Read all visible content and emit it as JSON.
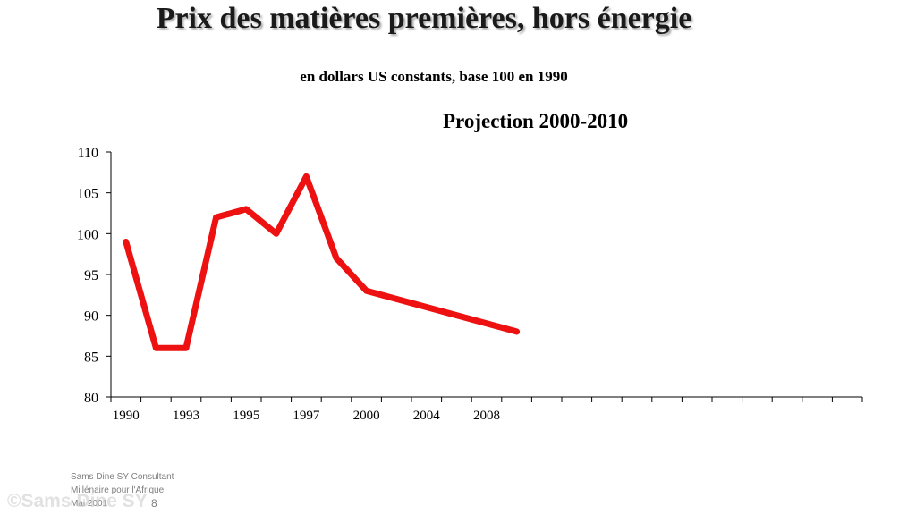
{
  "slide": {
    "title": "Prix des matières premières, hors énergie",
    "subtitle": "en dollars US constants, base 100 en 1990",
    "projection_label": "Projection 2000-2010",
    "footer_lines": [
      "Sams Dine SY Consultant",
      "Millénaire pour  l'Afrique",
      "Mai 2001"
    ],
    "page_number": "8",
    "watermark": "©Sams Dine SY"
  },
  "chart_data": {
    "type": "line",
    "title": "",
    "xlabel": "",
    "ylabel": "",
    "ylim": [
      80,
      110
    ],
    "yticks": [
      80,
      85,
      90,
      95,
      100,
      105,
      110
    ],
    "x_tick_labels": [
      "1990",
      "1993",
      "1995",
      "1997",
      "2000",
      "2004",
      "2008"
    ],
    "x_tick_positions": [
      0,
      2,
      4,
      6,
      8,
      10,
      12
    ],
    "x_category_count": 25,
    "grid": false,
    "legend": "none",
    "series": [
      {
        "color": "#ee1111",
        "x": [
          0,
          1,
          2,
          3,
          4,
          5,
          6,
          7,
          8,
          9,
          10,
          11,
          12,
          13
        ],
        "values": [
          99,
          86,
          86,
          102,
          103,
          100,
          107,
          97,
          93,
          92,
          91,
          90,
          89,
          88
        ]
      }
    ]
  }
}
